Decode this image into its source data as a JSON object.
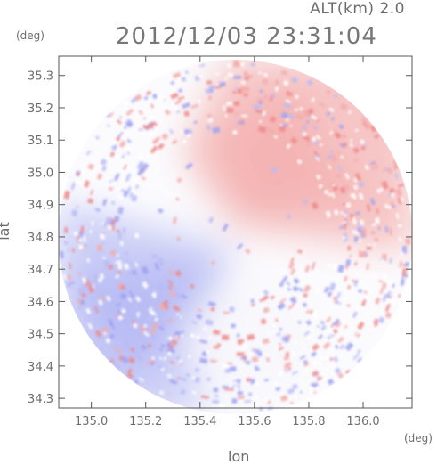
{
  "header": {
    "altitude_label": "ALT(km) 2.0",
    "timestamp": "2012/12/03 23:31:04"
  },
  "axes": {
    "x_label": "lon",
    "y_label": "lat",
    "x_unit": "(deg)",
    "y_unit": "(deg)",
    "x_ticks": [
      "135.0",
      "135.2",
      "135.4",
      "135.6",
      "135.8",
      "136.0"
    ],
    "y_ticks": [
      "35.3",
      "35.2",
      "35.1",
      "35.0",
      "34.9",
      "34.8",
      "34.7",
      "34.6",
      "34.5",
      "34.4",
      "34.3"
    ],
    "x_range": [
      134.88,
      136.18
    ],
    "y_range": [
      34.27,
      35.36
    ]
  },
  "radar": {
    "center": {
      "lon": 135.53,
      "lat": 34.8
    },
    "colors": {
      "positive": "#f08a8a",
      "negative": "#9a9ef0",
      "neutral": "#fbfbfd"
    }
  }
}
